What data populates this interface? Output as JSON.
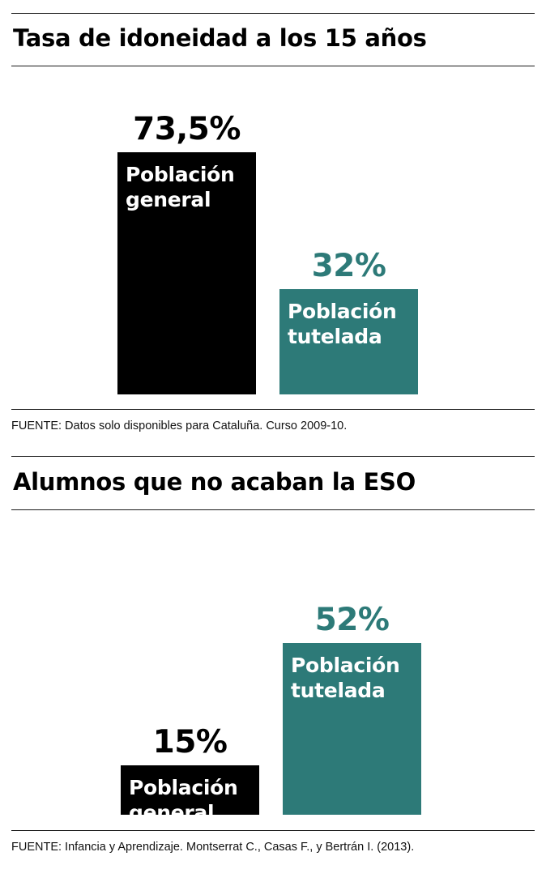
{
  "colors": {
    "general": "#000000",
    "tutelada": "#2d7a78",
    "text": "#000000"
  },
  "chart_data": [
    {
      "type": "bar",
      "title": "Tasa de idoneidad a los 15 años",
      "unit": "%",
      "series": [
        {
          "name": "Población general",
          "label_line1": "Población",
          "label_line2": "general",
          "value": 73.5,
          "value_label": "73,5%",
          "color": "#000000"
        },
        {
          "name": "Población tutelada",
          "label_line1": "Población",
          "label_line2": "tutelada",
          "value": 32,
          "value_label": "32%",
          "color": "#2d7a78"
        }
      ],
      "source": "FUENTE: Datos solo disponibles para Cataluña. Curso 2009-10."
    },
    {
      "type": "bar",
      "title": "Alumnos que no acaban la ESO",
      "unit": "%",
      "series": [
        {
          "name": "Población general",
          "label_line1": "Población",
          "label_line2": "general",
          "value": 15,
          "value_label": "15%",
          "color": "#000000"
        },
        {
          "name": "Población tutelada",
          "label_line1": "Población",
          "label_line2": "tutelada",
          "value": 52,
          "value_label": "52%",
          "color": "#2d7a78"
        }
      ],
      "source": "FUENTE: Infancia y Aprendizaje. Montserrat C., Casas F., y Bertrán I. (2013)."
    }
  ]
}
